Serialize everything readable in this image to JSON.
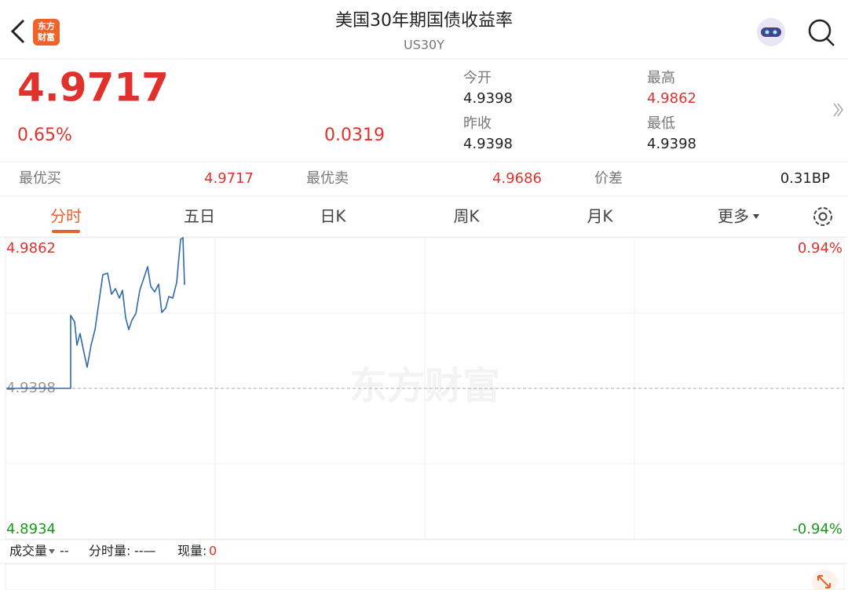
{
  "header": {
    "title": "美国30年期国债收益率",
    "subtitle": "US30Y",
    "logo": [
      "东方",
      "财富"
    ]
  },
  "quote": {
    "price": "4.9717",
    "change_pct": "0.65%",
    "change": "0.0319",
    "stats": [
      {
        "label": "今开",
        "value": "4.9398"
      },
      {
        "label": "最高",
        "value": "4.9862"
      },
      {
        "label": "昨收",
        "value": "4.9398"
      },
      {
        "label": "最低",
        "value": "4.9398"
      }
    ]
  },
  "order": [
    {
      "label": "最优买",
      "value": "4.9717"
    },
    {
      "label": "最优卖",
      "value": "4.9686"
    },
    {
      "label": "价差",
      "value": "0.31BP"
    }
  ],
  "tabs": [
    "分时",
    "五日",
    "日K",
    "周K",
    "月K",
    "更多"
  ],
  "watermark": "东方财富",
  "chart_data": {
    "type": "line",
    "color": "#2e6aad",
    "x": [
      0,
      82,
      82,
      87,
      90,
      94,
      98,
      103,
      108,
      113,
      118,
      123,
      129,
      134,
      139,
      144,
      148,
      152,
      156,
      160,
      165,
      170,
      175,
      180,
      184,
      189,
      194,
      198,
      203,
      207,
      212,
      217,
      222,
      225,
      227
    ],
    "values": [
      4.9398,
      4.9398,
      4.9623,
      4.9603,
      4.9531,
      4.9567,
      4.9519,
      4.9463,
      4.9531,
      4.9579,
      4.9664,
      4.9748,
      4.9753,
      4.9688,
      4.9705,
      4.9676,
      4.97,
      4.9616,
      4.9579,
      4.9608,
      4.9628,
      4.97,
      4.9736,
      4.9773,
      4.9712,
      4.9695,
      4.9719,
      4.9632,
      4.9645,
      4.9681,
      4.9676,
      4.9724,
      4.9857,
      4.9862,
      4.9717
    ],
    "xlim": [
      0,
      1067
    ],
    "ylim": [
      4.8934,
      4.9862
    ],
    "yticks": [
      4.8934,
      4.9398,
      4.9862
    ],
    "y2lim": [
      -0.94,
      0.94
    ],
    "y2ticks": [
      {
        "value": -0.94,
        "label": "-0.94%"
      },
      {
        "value": 0.94,
        "label": "0.94%"
      }
    ],
    "grid": true
  },
  "footer": [
    {
      "label": "成交量",
      "value": "--"
    },
    {
      "label": "分时量:",
      "value": "--—"
    },
    {
      "label": "现量:",
      "value": "0"
    }
  ]
}
